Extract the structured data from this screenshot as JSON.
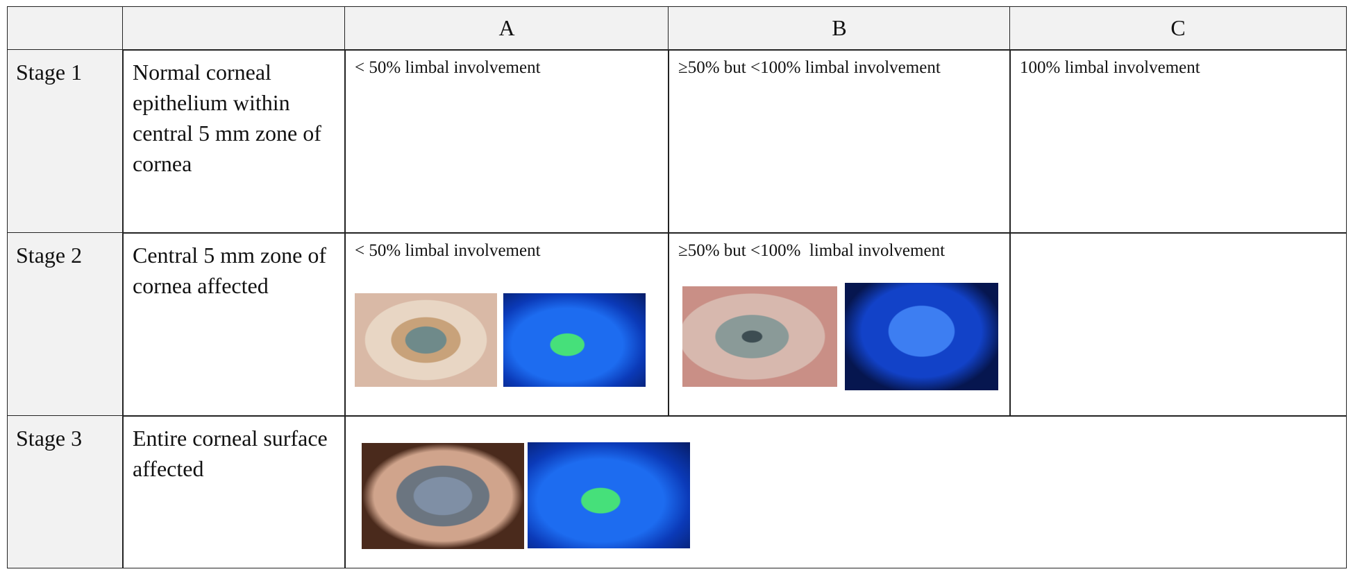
{
  "header": {
    "columns": [
      "A",
      "B",
      "C"
    ]
  },
  "rows": [
    {
      "stage": "Stage 1",
      "description": "Normal corneal epithelium within central 5 mm zone of cornea",
      "cells": {
        "a": "< 50% limbal involvement",
        "b": "≥50% but <100% limbal involvement",
        "c": "100% limbal involvement"
      }
    },
    {
      "stage": "Stage 2",
      "description": "Central 5 mm zone of cornea affected",
      "cells": {
        "a": "< 50% limbal involvement",
        "b": "≥50% but <100%  limbal involvement"
      }
    },
    {
      "stage": "Stage 3",
      "description": "Entire corneal surface affected"
    }
  ]
}
